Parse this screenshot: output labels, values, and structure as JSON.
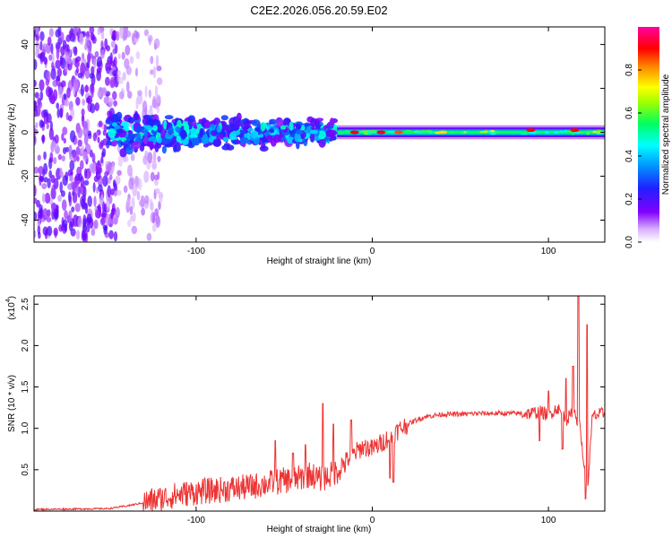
{
  "figure_title": "C2E2.2026.056.20.59.E02",
  "chart_data": [
    {
      "type": "heatmap",
      "title": "C2E2.2026.056.20.59.E02",
      "xlabel": "Height of straight line (km)",
      "ylabel": "Frequency (Hz)",
      "xlim": [
        -192,
        132
      ],
      "ylim": [
        -50,
        48
      ],
      "xticks": [
        -100,
        0,
        100
      ],
      "yticks": [
        -40,
        -20,
        0,
        20,
        40
      ],
      "colorbar": {
        "label": "Normalized spectral amplitude",
        "range": [
          0,
          1
        ],
        "ticks": [
          0.0,
          0.2,
          0.4,
          0.6,
          0.8
        ],
        "colors": [
          "#ffffff",
          "#c060ff",
          "#5000ff",
          "#0040ff",
          "#00ffff",
          "#00ff00",
          "#ffff00",
          "#ff8000",
          "#ff0000",
          "#ff00a0"
        ]
      },
      "segments": [
        {
          "x_start": -192,
          "x_end": -145,
          "freq_spread": 48,
          "amplitude": 0.18
        },
        {
          "x_start": -145,
          "x_end": -120,
          "freq_spread": 48,
          "amplitude": 0.08
        },
        {
          "x_start": -150,
          "x_end": -20,
          "freq_spread": 9,
          "amplitude": 0.35
        },
        {
          "x_start": -20,
          "x_end": 132,
          "freq_spread": 3,
          "amplitude": 0.55
        }
      ],
      "peaks": [
        {
          "x": -10,
          "freq": 0,
          "amplitude": 0.9
        },
        {
          "x": 5,
          "freq": 0,
          "amplitude": 0.9
        },
        {
          "x": 15,
          "freq": 0,
          "amplitude": 0.85
        },
        {
          "x": 40,
          "freq": 0,
          "amplitude": 0.75
        },
        {
          "x": 90,
          "freq": 1,
          "amplitude": 0.9
        },
        {
          "x": 115,
          "freq": 1,
          "amplitude": 0.9
        }
      ]
    },
    {
      "type": "line",
      "xlabel": "Height of straight line (km)",
      "ylabel": "SNR (10 * v/v)",
      "y_multiplier": "(x10",
      "y_multiplier_exp": "4",
      "xlim": [
        -192,
        132
      ],
      "ylim": [
        0,
        2.6
      ],
      "xticks": [
        -100,
        0,
        100
      ],
      "yticks": [
        0.5,
        1.0,
        1.5,
        2.0,
        2.5
      ],
      "series": [
        {
          "name": "SNR",
          "color": "#ee3333",
          "x": [
            -192,
            -150,
            -140,
            -130,
            -120,
            -110,
            -100,
            -90,
            -80,
            -70,
            -60,
            -50,
            -40,
            -35,
            -30,
            -25,
            -20,
            -15,
            -10,
            -5,
            0,
            5,
            10,
            15,
            20,
            25,
            30,
            40,
            50,
            60,
            70,
            80,
            90,
            95,
            100,
            105,
            110,
            115,
            118,
            120,
            122,
            125,
            132
          ],
          "y": [
            0.02,
            0.03,
            0.06,
            0.1,
            0.15,
            0.2,
            0.23,
            0.25,
            0.27,
            0.29,
            0.33,
            0.37,
            0.4,
            0.45,
            0.38,
            0.42,
            0.48,
            0.6,
            0.7,
            0.78,
            0.75,
            0.82,
            0.9,
            0.98,
            1.05,
            1.1,
            1.14,
            1.17,
            1.17,
            1.18,
            1.18,
            1.18,
            1.18,
            1.2,
            1.16,
            1.25,
            1.1,
            1.2,
            1.0,
            0.6,
            0.2,
            1.15,
            1.18
          ]
        }
      ],
      "spikes": [
        {
          "x": -55,
          "y": 0.85
        },
        {
          "x": -45,
          "y": 0.7
        },
        {
          "x": -38,
          "y": 0.8
        },
        {
          "x": -28,
          "y": 1.3
        },
        {
          "x": -22,
          "y": 1.05
        },
        {
          "x": -12,
          "y": 1.1
        },
        {
          "x": 10,
          "y": 0.4
        },
        {
          "x": 12,
          "y": 0.35
        },
        {
          "x": 95,
          "y": 0.85
        },
        {
          "x": 100,
          "y": 1.45
        },
        {
          "x": 108,
          "y": 0.75
        },
        {
          "x": 110,
          "y": 1.6
        },
        {
          "x": 114,
          "y": 1.75
        },
        {
          "x": 117,
          "y": 2.6
        },
        {
          "x": 121,
          "y": 0.15
        },
        {
          "x": 122,
          "y": 2.25
        }
      ]
    }
  ]
}
